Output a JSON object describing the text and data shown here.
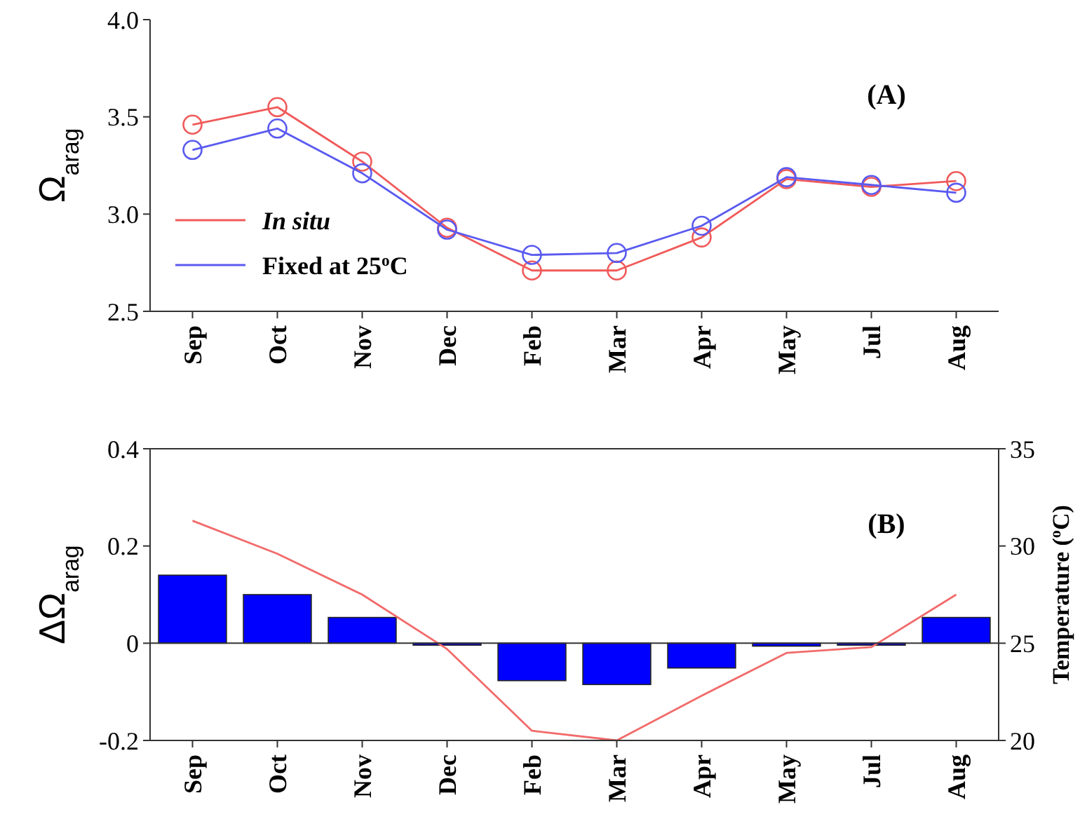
{
  "chart_data": [
    {
      "type": "line",
      "categories": [
        "Sep",
        "Oct",
        "Nov",
        "Dec",
        "Feb",
        "Mar",
        "Apr",
        "May",
        "Jul",
        "Aug"
      ],
      "ylabel": "Ω$_{arag}$",
      "annotations": [
        "(A)"
      ],
      "ylim": [
        2.5,
        4.0
      ],
      "yticks": [
        {
          "value": 2.5,
          "label": "2.5"
        },
        {
          "value": 3,
          "label": "3.0"
        },
        {
          "value": 3.5,
          "label": "3.5"
        },
        {
          "value": 4,
          "label": "4.0"
        }
      ],
      "legend": "bottom left",
      "marker": "circle",
      "grid": false,
      "series": [
        {
          "name": "In situ",
          "color": "#f05a5a",
          "values": [
            3.46,
            3.55,
            3.27,
            2.93,
            2.71,
            2.71,
            2.88,
            3.18,
            3.14,
            3.17
          ]
        },
        {
          "name": "Fixed at 25$^{o}$C",
          "color": "#5a5af0",
          "values": [
            3.33,
            3.44,
            3.21,
            2.92,
            2.79,
            2.8,
            2.94,
            3.19,
            3.15,
            3.11
          ]
        }
      ]
    },
    {
      "type": "bar",
      "categories": [
        "Sep",
        "Oct",
        "Nov",
        "Dec",
        "Feb",
        "Mar",
        "Apr",
        "May",
        "Jul",
        "Aug"
      ],
      "ylabel": "ΔΩ$_{arag}$",
      "y2label": "Temperature ($^{o}$C)",
      "annotations": [
        "(B)"
      ],
      "ylim": [
        -0.2,
        0.4
      ],
      "yticks": [
        -0.2,
        0,
        0.2,
        0.4
      ],
      "y2lim": [
        20,
        35
      ],
      "y2ticks": [
        20,
        25,
        30,
        35
      ],
      "legend": false,
      "series": [
        {
          "type": "bar",
          "color": "#0000ff",
          "values": [
            0.14,
            0.1,
            0.053,
            -0.004,
            -0.077,
            -0.085,
            -0.051,
            -0.006,
            -0.004,
            0.053
          ]
        },
        {
          "type": "line",
          "axis": "y2",
          "color": "#f26b6b",
          "values": [
            31.3,
            29.6,
            27.5,
            24.7,
            20.5,
            20.0,
            22.3,
            24.5,
            24.8,
            27.5
          ]
        }
      ]
    }
  ]
}
